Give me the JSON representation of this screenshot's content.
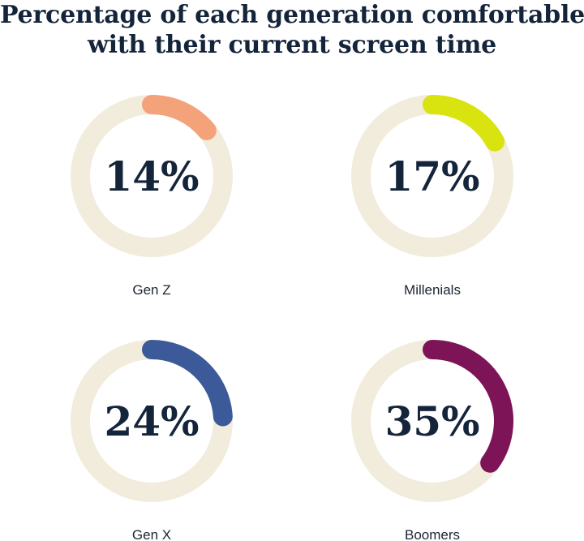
{
  "chart_data": {
    "type": "pie",
    "subtype": "donut-grid",
    "title_lines": [
      "Percentage of each generation comfortable",
      "with their current screen time"
    ],
    "categories": [
      "Gen Z",
      "Millenials",
      "Gen X",
      "Boomers"
    ],
    "values": [
      14,
      17,
      24,
      35
    ],
    "value_labels": [
      "14%",
      "17%",
      "24%",
      "35%"
    ],
    "unit": "%",
    "max": 100,
    "colors": [
      "#f4a27a",
      "#d8e30f",
      "#3c5a9a",
      "#7e1458"
    ],
    "track_color": "#f1ecdc"
  }
}
